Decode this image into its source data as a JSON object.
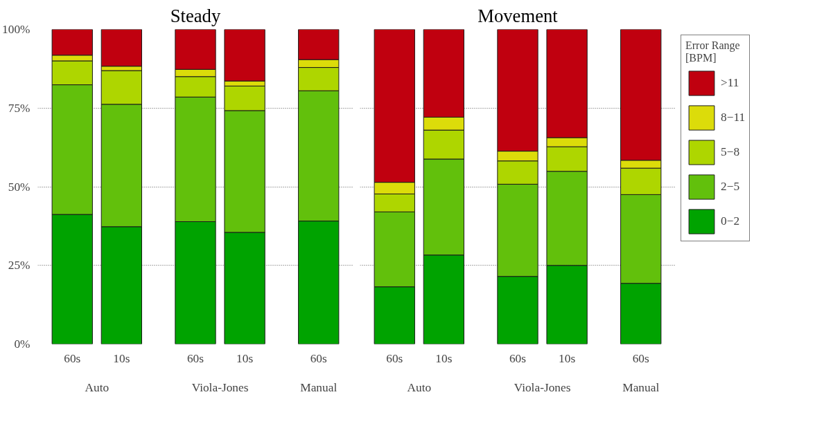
{
  "chart_data": [
    {
      "type": "bar",
      "title": "Steady",
      "stacked": true,
      "categories": [
        "60s",
        "10s",
        "60s",
        "10s",
        "60s"
      ],
      "annotations": [
        "Auto",
        "Viola-Jones",
        "Manual"
      ],
      "legend": false,
      "grid": "y",
      "ylim": [
        0,
        100
      ],
      "yticks": [
        {
          "value": 0,
          "label": "0%"
        },
        {
          "value": 25,
          "label": "25%"
        },
        {
          "value": 50,
          "label": "50%"
        },
        {
          "value": 75,
          "label": "75%"
        },
        {
          "value": 100,
          "label": "100%"
        }
      ],
      "series": [
        {
          "color": "#00a300",
          "values": [
            41.2,
            37.3,
            38.9,
            35.5,
            39.1
          ]
        },
        {
          "color": "#62c00c",
          "values": [
            41.2,
            38.9,
            39.6,
            38.7,
            41.4
          ]
        },
        {
          "color": "#aed600",
          "values": [
            7.6,
            10.7,
            6.5,
            7.8,
            7.4
          ]
        },
        {
          "color": "#dcdc0a",
          "values": [
            1.8,
            1.4,
            2.3,
            1.6,
            2.5
          ]
        },
        {
          "color": "#c0000f",
          "values": [
            8.2,
            11.7,
            12.7,
            16.4,
            9.6
          ]
        }
      ]
    },
    {
      "type": "bar",
      "title": "Movement",
      "stacked": true,
      "categories": [
        "60s",
        "10s",
        "60s",
        "10s",
        "60s"
      ],
      "annotations": [
        "Auto",
        "Viola-Jones",
        "Manual"
      ],
      "legend_title": "Error Range [BPM]",
      "legend": "right",
      "grid": "y",
      "tick_labels": "x",
      "ylim": [
        0,
        100
      ],
      "yticks": [
        {
          "value": 0,
          "label": null
        },
        {
          "value": 25,
          "label": null
        },
        {
          "value": 50,
          "label": null
        },
        {
          "value": 75,
          "label": null
        },
        {
          "value": 100,
          "label": null
        }
      ],
      "series": [
        {
          "name": "0−2",
          "color": "#00a300",
          "values": [
            18.2,
            28.3,
            21.5,
            25.0,
            19.3
          ]
        },
        {
          "name": "2−5",
          "color": "#62c00c",
          "values": [
            23.8,
            30.5,
            29.3,
            29.9,
            28.2
          ]
        },
        {
          "name": "5−8",
          "color": "#aed600",
          "values": [
            5.7,
            9.2,
            7.4,
            7.8,
            8.4
          ]
        },
        {
          "name": "8−11",
          "color": "#dcdc0a",
          "values": [
            3.7,
            4.1,
            3.1,
            2.9,
            2.5
          ]
        },
        {
          "name": ">11",
          "color": "#c0000f",
          "values": [
            48.6,
            27.9,
            38.7,
            34.4,
            41.6
          ]
        }
      ]
    }
  ]
}
